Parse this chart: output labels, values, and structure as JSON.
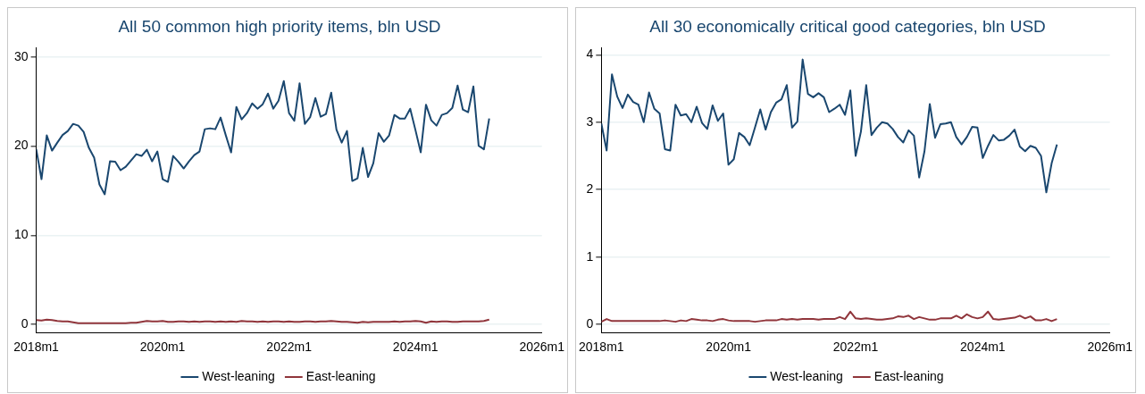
{
  "chart_data": [
    {
      "type": "line",
      "title": "All 50 common high priority items, bln USD",
      "x": [
        "2018-01",
        "2018-02",
        "2018-03",
        "2018-04",
        "2018-05",
        "2018-06",
        "2018-07",
        "2018-08",
        "2018-09",
        "2018-10",
        "2018-11",
        "2018-12",
        "2019-01",
        "2019-02",
        "2019-03",
        "2019-04",
        "2019-05",
        "2019-06",
        "2019-07",
        "2019-08",
        "2019-09",
        "2019-10",
        "2019-11",
        "2019-12",
        "2020-01",
        "2020-02",
        "2020-03",
        "2020-04",
        "2020-05",
        "2020-06",
        "2020-07",
        "2020-08",
        "2020-09",
        "2020-10",
        "2020-11",
        "2020-12",
        "2021-01",
        "2021-02",
        "2021-03",
        "2021-04",
        "2021-05",
        "2021-06",
        "2021-07",
        "2021-08",
        "2021-09",
        "2021-10",
        "2021-11",
        "2021-12",
        "2022-01",
        "2022-02",
        "2022-03",
        "2022-04",
        "2022-05",
        "2022-06",
        "2022-07",
        "2022-08",
        "2022-09",
        "2022-10",
        "2022-11",
        "2022-12",
        "2023-01",
        "2023-02",
        "2023-03",
        "2023-04",
        "2023-05",
        "2023-06",
        "2023-07",
        "2023-08",
        "2023-09",
        "2023-10",
        "2023-11",
        "2023-12",
        "2024-01",
        "2024-02",
        "2024-03",
        "2024-04",
        "2024-05",
        "2024-06",
        "2024-07",
        "2024-08",
        "2024-09",
        "2024-10",
        "2024-11",
        "2024-12",
        "2025-01",
        "2025-02",
        "2025-03"
      ],
      "series": [
        {
          "name": "West-leaning",
          "color": "#1a476f",
          "values": [
            19.65,
            16.3,
            21.2,
            19.5,
            20.4,
            21.25,
            21.7,
            22.5,
            22.3,
            21.6,
            19.8,
            18.7,
            15.7,
            14.6,
            18.3,
            18.25,
            17.3,
            17.7,
            18.4,
            19.1,
            18.9,
            19.6,
            18.3,
            19.4,
            16.3,
            16.0,
            18.9,
            18.25,
            17.5,
            18.3,
            19.0,
            19.4,
            21.9,
            22.0,
            21.9,
            23.2,
            21.2,
            19.3,
            24.4,
            23.0,
            23.7,
            24.8,
            24.2,
            24.7,
            25.9,
            24.2,
            25.1,
            27.3,
            23.7,
            22.85,
            27.05,
            22.5,
            23.25,
            25.4,
            23.3,
            23.6,
            26.0,
            21.85,
            20.4,
            21.7,
            16.1,
            16.4,
            19.8,
            16.55,
            18.1,
            21.45,
            20.5,
            21.2,
            23.5,
            23.1,
            23.1,
            24.2,
            21.8,
            19.3,
            24.65,
            22.9,
            22.3,
            23.5,
            23.7,
            24.3,
            26.8,
            24.1,
            23.8,
            26.7,
            20.05,
            19.65,
            23.1
          ]
        },
        {
          "name": "East-leaning",
          "color": "#90353b",
          "values": [
            0.5,
            0.45,
            0.55,
            0.5,
            0.4,
            0.35,
            0.35,
            0.25,
            0.15,
            0.15,
            0.15,
            0.15,
            0.15,
            0.15,
            0.15,
            0.15,
            0.15,
            0.15,
            0.2,
            0.2,
            0.3,
            0.4,
            0.35,
            0.35,
            0.4,
            0.3,
            0.3,
            0.35,
            0.35,
            0.3,
            0.35,
            0.3,
            0.35,
            0.35,
            0.3,
            0.35,
            0.3,
            0.35,
            0.3,
            0.4,
            0.35,
            0.35,
            0.3,
            0.35,
            0.3,
            0.35,
            0.35,
            0.3,
            0.35,
            0.3,
            0.3,
            0.35,
            0.35,
            0.3,
            0.35,
            0.35,
            0.4,
            0.35,
            0.3,
            0.3,
            0.25,
            0.2,
            0.3,
            0.25,
            0.3,
            0.3,
            0.3,
            0.3,
            0.35,
            0.3,
            0.35,
            0.35,
            0.4,
            0.35,
            0.2,
            0.35,
            0.3,
            0.35,
            0.35,
            0.3,
            0.3,
            0.35,
            0.35,
            0.35,
            0.35,
            0.4,
            0.55
          ]
        }
      ],
      "xlim": [
        "2018-01",
        "2026-01"
      ],
      "xticks": [
        {
          "value": "2018-01",
          "label": "2018m1"
        },
        {
          "value": "2020-01",
          "label": "2020m1"
        },
        {
          "value": "2022-01",
          "label": "2022m1"
        },
        {
          "value": "2024-01",
          "label": "2024m1"
        },
        {
          "value": "2026-01",
          "label": "2026m1"
        }
      ],
      "ylim": [
        -0.9,
        31
      ],
      "yticks": [
        0,
        10,
        20,
        30
      ],
      "grid": "y",
      "legend": "bottom",
      "marker": "none",
      "line_style": "solid"
    },
    {
      "type": "line",
      "title": "All 30 economically critical good categories, bln USD",
      "x": [
        "2018-01",
        "2018-02",
        "2018-03",
        "2018-04",
        "2018-05",
        "2018-06",
        "2018-07",
        "2018-08",
        "2018-09",
        "2018-10",
        "2018-11",
        "2018-12",
        "2019-01",
        "2019-02",
        "2019-03",
        "2019-04",
        "2019-05",
        "2019-06",
        "2019-07",
        "2019-08",
        "2019-09",
        "2019-10",
        "2019-11",
        "2019-12",
        "2020-01",
        "2020-02",
        "2020-03",
        "2020-04",
        "2020-05",
        "2020-06",
        "2020-07",
        "2020-08",
        "2020-09",
        "2020-10",
        "2020-11",
        "2020-12",
        "2021-01",
        "2021-02",
        "2021-03",
        "2021-04",
        "2021-05",
        "2021-06",
        "2021-07",
        "2021-08",
        "2021-09",
        "2021-10",
        "2021-11",
        "2021-12",
        "2022-01",
        "2022-02",
        "2022-03",
        "2022-04",
        "2022-05",
        "2022-06",
        "2022-07",
        "2022-08",
        "2022-09",
        "2022-10",
        "2022-11",
        "2022-12",
        "2023-01",
        "2023-02",
        "2023-03",
        "2023-04",
        "2023-05",
        "2023-06",
        "2023-07",
        "2023-08",
        "2023-09",
        "2023-10",
        "2023-11",
        "2023-12",
        "2024-01",
        "2024-02",
        "2024-03",
        "2024-04",
        "2024-05",
        "2024-06",
        "2024-07",
        "2024-08",
        "2024-09",
        "2024-10",
        "2024-11",
        "2024-12",
        "2025-01",
        "2025-02",
        "2025-03"
      ],
      "series": [
        {
          "name": "West-leaning",
          "color": "#1a476f",
          "values": [
            2.98,
            2.58,
            3.71,
            3.38,
            3.21,
            3.41,
            3.3,
            3.26,
            3.0,
            3.44,
            3.2,
            3.13,
            2.6,
            2.58,
            3.26,
            3.1,
            3.12,
            3.0,
            3.23,
            2.99,
            2.9,
            3.25,
            3.02,
            3.13,
            2.37,
            2.45,
            2.84,
            2.78,
            2.66,
            2.92,
            3.19,
            2.89,
            3.15,
            3.29,
            3.34,
            3.55,
            2.92,
            3.01,
            3.93,
            3.42,
            3.37,
            3.43,
            3.37,
            3.15,
            3.2,
            3.26,
            3.11,
            3.47,
            2.5,
            2.86,
            3.55,
            2.81,
            2.92,
            3.0,
            2.98,
            2.9,
            2.78,
            2.7,
            2.88,
            2.8,
            2.18,
            2.57,
            3.27,
            2.77,
            2.97,
            2.98,
            3.0,
            2.78,
            2.67,
            2.78,
            2.93,
            2.92,
            2.47,
            2.65,
            2.81,
            2.73,
            2.74,
            2.8,
            2.89,
            2.64,
            2.57,
            2.65,
            2.62,
            2.5,
            1.96,
            2.39,
            2.67
          ]
        },
        {
          "name": "East-leaning",
          "color": "#90353b",
          "values": [
            0.04,
            0.08,
            0.05,
            0.05,
            0.05,
            0.05,
            0.05,
            0.05,
            0.05,
            0.05,
            0.05,
            0.05,
            0.06,
            0.05,
            0.04,
            0.06,
            0.05,
            0.08,
            0.07,
            0.06,
            0.06,
            0.05,
            0.07,
            0.08,
            0.06,
            0.05,
            0.05,
            0.05,
            0.05,
            0.04,
            0.05,
            0.06,
            0.06,
            0.06,
            0.08,
            0.07,
            0.08,
            0.07,
            0.08,
            0.08,
            0.08,
            0.07,
            0.08,
            0.08,
            0.08,
            0.11,
            0.08,
            0.19,
            0.09,
            0.08,
            0.09,
            0.08,
            0.07,
            0.07,
            0.08,
            0.09,
            0.12,
            0.11,
            0.13,
            0.08,
            0.11,
            0.09,
            0.07,
            0.07,
            0.09,
            0.09,
            0.09,
            0.13,
            0.09,
            0.15,
            0.11,
            0.09,
            0.11,
            0.19,
            0.08,
            0.07,
            0.08,
            0.09,
            0.1,
            0.13,
            0.09,
            0.12,
            0.06,
            0.06,
            0.08,
            0.05,
            0.08
          ]
        }
      ],
      "xlim": [
        "2018-01",
        "2026-01"
      ],
      "xticks": [
        {
          "value": "2018-01",
          "label": "2018m1"
        },
        {
          "value": "2020-01",
          "label": "2020m1"
        },
        {
          "value": "2022-01",
          "label": "2022m1"
        },
        {
          "value": "2024-01",
          "label": "2024m1"
        },
        {
          "value": "2026-01",
          "label": "2026m1"
        }
      ],
      "ylim": [
        -0.12,
        4.1
      ],
      "yticks": [
        0,
        1,
        2,
        3,
        4
      ],
      "grid": "y",
      "legend": "bottom",
      "marker": "none",
      "line_style": "solid"
    }
  ]
}
